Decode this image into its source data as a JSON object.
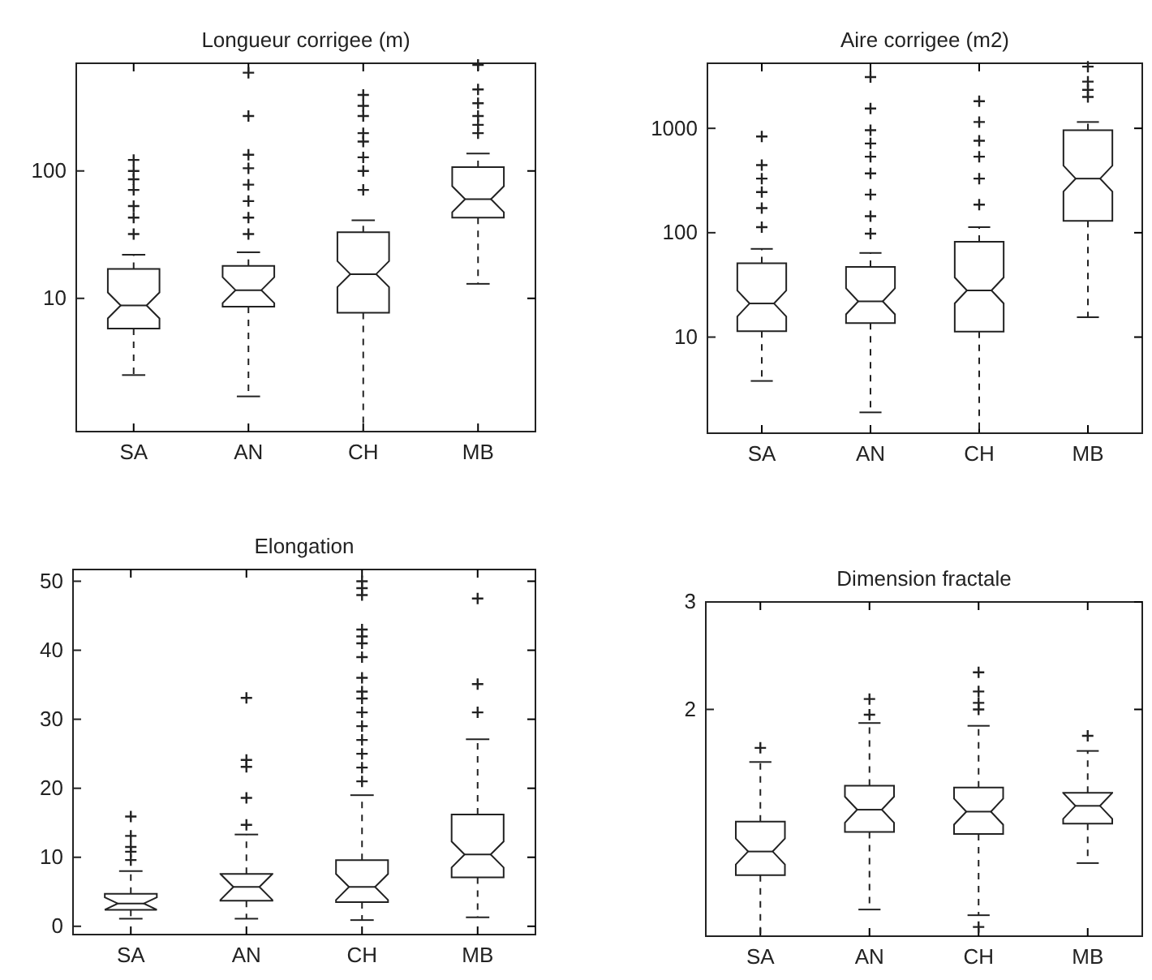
{
  "chart_data": [
    {
      "type": "box",
      "title": "Longueur corrigee (m)",
      "categories": [
        "SA",
        "AN",
        "CH",
        "MB"
      ],
      "log": true,
      "ylim": [
        0.9,
        700
      ],
      "yticks": [
        10,
        100
      ],
      "boxes": [
        {
          "low": 2.5,
          "q1": 5.8,
          "median": 8.8,
          "q3": 17,
          "high": 22,
          "outliers": [
            32,
            43,
            53,
            71,
            86,
            100,
            122
          ]
        },
        {
          "low": 1.7,
          "q1": 8.6,
          "median": 11.6,
          "q3": 18,
          "high": 23,
          "outliers": [
            32,
            43,
            58,
            78,
            105,
            134,
            270,
            590
          ]
        },
        {
          "low": 0.9,
          "q1": 7.7,
          "median": 15.5,
          "q3": 33,
          "high": 41,
          "outliers": [
            71,
            100,
            128,
            170,
            198,
            270,
            324,
            395
          ]
        },
        {
          "low": 13,
          "q1": 43,
          "median": 60,
          "q3": 107,
          "high": 137,
          "outliers": [
            198,
            230,
            270,
            340,
            436,
            680
          ]
        }
      ]
    },
    {
      "type": "box",
      "title": "Aire corrigee (m2)",
      "categories": [
        "SA",
        "AN",
        "CH",
        "MB"
      ],
      "log": true,
      "ylim": [
        1.2,
        4200
      ],
      "yticks": [
        10,
        100,
        1000
      ],
      "boxes": [
        {
          "low": 3.8,
          "q1": 11.4,
          "median": 21,
          "q3": 51,
          "high": 70,
          "outliers": [
            113,
            172,
            245,
            330,
            445,
            835
          ]
        },
        {
          "low": 1.9,
          "q1": 13.6,
          "median": 22,
          "q3": 47,
          "high": 64,
          "outliers": [
            98,
            144,
            232,
            370,
            535,
            716,
            960,
            1550,
            3100
          ]
        },
        {
          "low": 1.2,
          "q1": 11.3,
          "median": 28,
          "q3": 82,
          "high": 113,
          "outliers": [
            186,
            330,
            535,
            760,
            1150,
            1820
          ]
        },
        {
          "low": 15.5,
          "q1": 130,
          "median": 330,
          "q3": 960,
          "high": 1150,
          "outliers": [
            2000,
            2340,
            2800,
            3900
          ]
        }
      ]
    },
    {
      "type": "box",
      "title": "Elongation",
      "categories": [
        "SA",
        "AN",
        "CH",
        "MB"
      ],
      "ylim": [
        -1.2,
        51.7
      ],
      "yticks": [
        0,
        10,
        20,
        30,
        40,
        50
      ],
      "boxes": [
        {
          "low": 1.1,
          "q1": 2.4,
          "median": 3.3,
          "q3": 4.7,
          "high": 8,
          "outliers": [
            9.6,
            10.8,
            11.5,
            13.1,
            15.9
          ]
        },
        {
          "low": 1.1,
          "q1": 3.7,
          "median": 5.7,
          "q3": 7.6,
          "high": 13.3,
          "outliers": [
            14.7,
            18.6,
            23.1,
            24.1,
            33.1
          ]
        },
        {
          "low": 0.9,
          "q1": 3.5,
          "median": 5.7,
          "q3": 9.6,
          "high": 19,
          "outliers": [
            21,
            23,
            25,
            27,
            29,
            31,
            33,
            34,
            36,
            39,
            41,
            42,
            43,
            48,
            49,
            50
          ]
        },
        {
          "low": 1.3,
          "q1": 7.1,
          "median": 10.4,
          "q3": 16.2,
          "high": 27.1,
          "outliers": [
            31,
            35.1,
            47.5
          ]
        }
      ]
    },
    {
      "type": "box",
      "title": "Dimension fractale",
      "categories": [
        "SA",
        "AN",
        "CH",
        "MB"
      ],
      "log": true,
      "ylim": [
        0.85,
        3
      ],
      "yticks": [
        2,
        3
      ],
      "boxes": [
        {
          "low": 0.85,
          "q1": 1.07,
          "median": 1.17,
          "q3": 1.31,
          "high": 1.64,
          "outliers": [
            1.73
          ]
        },
        {
          "low": 0.94,
          "q1": 1.26,
          "median": 1.37,
          "q3": 1.5,
          "high": 1.9,
          "outliers": [
            1.96,
            2.08
          ]
        },
        {
          "low": 0.92,
          "q1": 1.25,
          "median": 1.36,
          "q3": 1.49,
          "high": 1.88,
          "outliers": [
            0.88,
            2.0,
            2.05,
            2.14,
            2.3
          ]
        },
        {
          "low": 1.12,
          "q1": 1.3,
          "median": 1.39,
          "q3": 1.46,
          "high": 1.71,
          "outliers": [
            1.81
          ]
        }
      ]
    }
  ]
}
